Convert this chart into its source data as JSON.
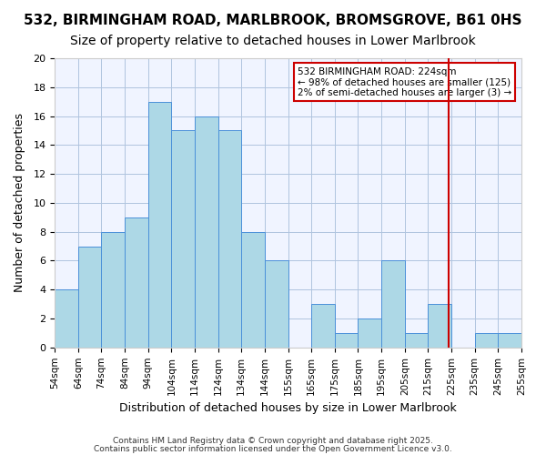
{
  "title1": "532, BIRMINGHAM ROAD, MARLBROOK, BROMSGROVE, B61 0HS",
  "title2": "Size of property relative to detached houses in Lower Marlbrook",
  "xlabel": "Distribution of detached houses by size in Lower Marlbrook",
  "ylabel": "Number of detached properties",
  "bin_labels": [
    "54sqm",
    "64sqm",
    "74sqm",
    "84sqm",
    "94sqm",
    "104sqm",
    "114sqm",
    "124sqm",
    "134sqm",
    "144sqm",
    "155sqm",
    "165sqm",
    "175sqm",
    "185sqm",
    "195sqm",
    "205sqm",
    "215sqm",
    "225sqm",
    "235sqm",
    "245sqm",
    "255sqm"
  ],
  "bar_heights": [
    4,
    7,
    8,
    9,
    17,
    15,
    16,
    15,
    8,
    6,
    0,
    3,
    1,
    2,
    6,
    1,
    3,
    0,
    1,
    1,
    0
  ],
  "bar_color": "#add8e6",
  "bar_edge_color": "#4a90d9",
  "grid_color": "#b0c4de",
  "background_color": "#f0f4ff",
  "vline_x": 224,
  "vline_color": "#cc0000",
  "ylim": [
    0,
    20
  ],
  "yticks": [
    0,
    2,
    4,
    6,
    8,
    10,
    12,
    14,
    16,
    18,
    20
  ],
  "annotation_title": "532 BIRMINGHAM ROAD: 224sqm",
  "annotation_line1": "← 98% of detached houses are smaller (125)",
  "annotation_line2": "2% of semi-detached houses are larger (3) →",
  "footer1": "Contains HM Land Registry data © Crown copyright and database right 2025.",
  "footer2": "Contains public sector information licensed under the Open Government Licence v3.0.",
  "title1_fontsize": 11,
  "title2_fontsize": 10,
  "xlabel_fontsize": 9,
  "ylabel_fontsize": 9
}
